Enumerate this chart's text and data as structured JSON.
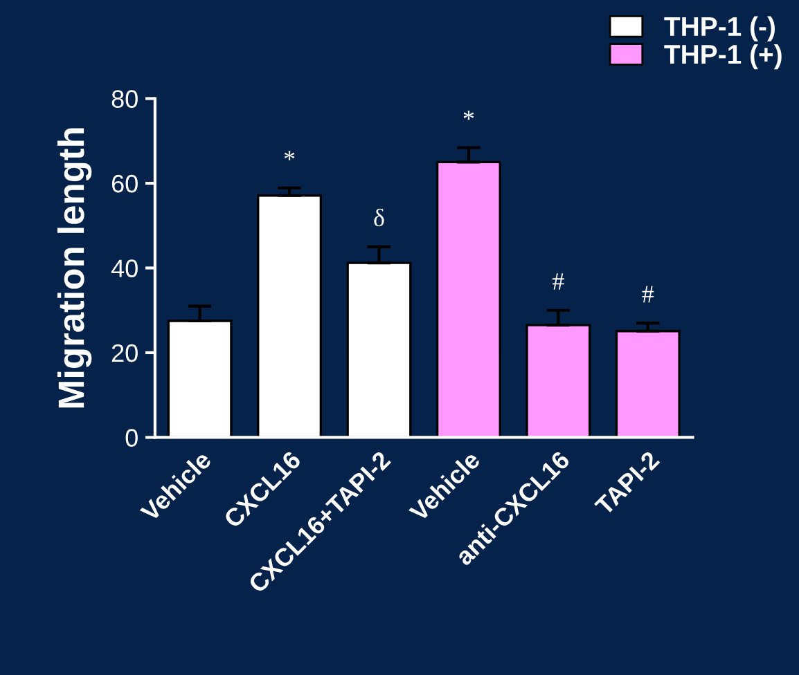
{
  "chart_data": {
    "type": "bar",
    "ylabel": "Migration length",
    "categories": [
      "Vehicle",
      "CXCL16",
      "CXCL16+TAPI-2",
      "Vehicle",
      "anti-CXCL16",
      "TAPI-2"
    ],
    "series": [
      {
        "name": "THP-1 (-)",
        "color": "#ffffff",
        "values": [
          27.5,
          57.1,
          41.2,
          null,
          null,
          null
        ],
        "errors": [
          [
            27.5,
            31
          ],
          [
            57.1,
            58.9
          ],
          [
            41.2,
            45
          ],
          null,
          null,
          null
        ],
        "value_labels": [
          null,
          "*",
          "δ",
          null,
          null,
          null
        ]
      },
      {
        "name": "THP-1 (+)",
        "color": "#ff99ff",
        "values": [
          null,
          null,
          null,
          65,
          26.5,
          25.1
        ],
        "errors": [
          null,
          null,
          null,
          [
            65,
            68.4
          ],
          [
            26.5,
            30
          ],
          [
            25.1,
            27
          ]
        ],
        "value_labels": [
          null,
          null,
          null,
          "*",
          "#",
          "#"
        ]
      }
    ],
    "ylim": [
      0,
      80
    ],
    "yticks": [
      0,
      20,
      40,
      60,
      80
    ],
    "grid": false,
    "legend": "top right"
  }
}
